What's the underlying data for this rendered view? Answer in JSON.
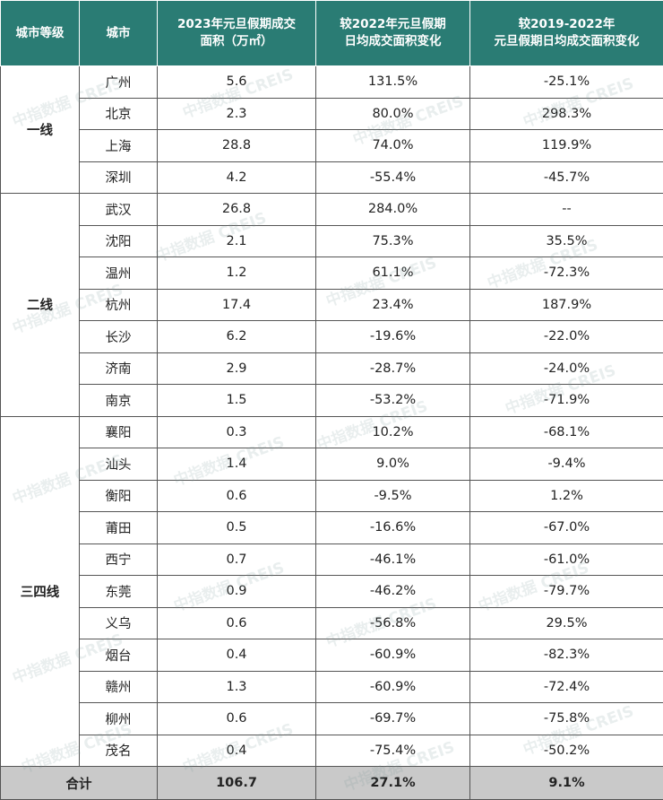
{
  "chart_data": {
    "type": "table",
    "columns": [
      "城市等级",
      "城市",
      "2023年元旦假期成交面积（万㎡）",
      "较2022年元旦假期日均成交面积变化",
      "较2019-2022年元旦假期日均成交面积变化"
    ],
    "header_lines": [
      [
        "城市等级"
      ],
      [
        "城市"
      ],
      [
        "2023年元旦假期成交",
        "面积（万㎡）"
      ],
      [
        "较2022年元旦假期",
        "日均成交面积变化"
      ],
      [
        "较2019-2022年",
        "元旦假期日均成交面积变化"
      ]
    ],
    "groups": [
      {
        "tier": "一线",
        "rows": [
          [
            "广州",
            "5.6",
            "131.5%",
            "-25.1%"
          ],
          [
            "北京",
            "2.3",
            "80.0%",
            "298.3%"
          ],
          [
            "上海",
            "28.8",
            "74.0%",
            "119.9%"
          ],
          [
            "深圳",
            "4.2",
            "-55.4%",
            "-45.7%"
          ]
        ]
      },
      {
        "tier": "二线",
        "rows": [
          [
            "武汉",
            "26.8",
            "284.0%",
            "--"
          ],
          [
            "沈阳",
            "2.1",
            "75.3%",
            "35.5%"
          ],
          [
            "温州",
            "1.2",
            "61.1%",
            "-72.3%"
          ],
          [
            "杭州",
            "17.4",
            "23.4%",
            "187.9%"
          ],
          [
            "长沙",
            "6.2",
            "-19.6%",
            "-22.0%"
          ],
          [
            "济南",
            "2.9",
            "-28.7%",
            "-24.0%"
          ],
          [
            "南京",
            "1.5",
            "-53.2%",
            "-71.9%"
          ]
        ]
      },
      {
        "tier": "三四线",
        "rows": [
          [
            "襄阳",
            "0.3",
            "10.2%",
            "-68.1%"
          ],
          [
            "汕头",
            "1.4",
            "9.0%",
            "-9.4%"
          ],
          [
            "衡阳",
            "0.6",
            "-9.5%",
            "1.2%"
          ],
          [
            "莆田",
            "0.5",
            "-16.6%",
            "-67.0%"
          ],
          [
            "西宁",
            "0.7",
            "-46.1%",
            "-61.0%"
          ],
          [
            "东莞",
            "0.9",
            "-46.2%",
            "-79.7%"
          ],
          [
            "义乌",
            "0.6",
            "-56.8%",
            "29.5%"
          ],
          [
            "烟台",
            "0.4",
            "-60.9%",
            "-82.3%"
          ],
          [
            "赣州",
            "1.3",
            "-60.9%",
            "-72.4%"
          ],
          [
            "柳州",
            "0.6",
            "-69.7%",
            "-75.8%"
          ],
          [
            "茂名",
            "0.4",
            "-75.4%",
            "-50.2%"
          ]
        ]
      }
    ],
    "total": [
      "合计",
      "106.7",
      "27.1%",
      "9.1%"
    ]
  },
  "watermark": {
    "cn": "中指数据",
    "en": "CREIS",
    "color": "#9fb7b5"
  },
  "colors": {
    "header_bg": "#2a7c74",
    "header_text": "#ffffff",
    "total_bg": "#c9c9c9",
    "border": "#555555"
  }
}
